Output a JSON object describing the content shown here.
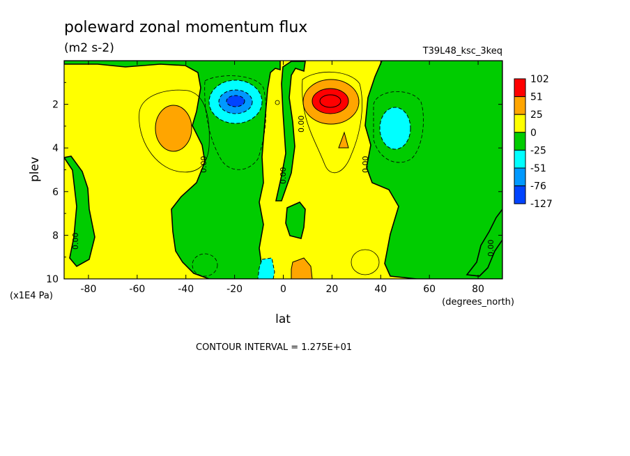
{
  "chart_data": {
    "type": "heatmap",
    "title": "poleward zonal momentum flux",
    "units": "(m2 s-2)",
    "run_label": "T39L48_ksc_3keq",
    "xlabel": "lat",
    "xunits": "(degrees_north)",
    "ylabel": "plev",
    "yunits": "(x1E4 Pa)",
    "xlim": [
      -90,
      90
    ],
    "ylim": [
      10,
      0
    ],
    "x_ticks": [
      -80,
      -60,
      -40,
      -20,
      0,
      20,
      40,
      60,
      80
    ],
    "y_ticks": [
      2,
      4,
      6,
      8,
      10
    ],
    "contour_interval_text": "CONTOUR INTERVAL = 1.275E+01",
    "colorbar": {
      "labels": [
        "102",
        "51",
        "25",
        "0",
        "-25",
        "-51",
        "-76",
        "-127"
      ],
      "colors": [
        "#ff0000",
        "#ffa500",
        "#ffff00",
        "#00cc00",
        "#00ffff",
        "#0099ff",
        "#0044ff"
      ]
    },
    "zero_contour_label": "0.00",
    "features": [
      {
        "name": "NH subtropical jet flux maximum",
        "lat": 20,
        "plev": 2.0,
        "value": 102
      },
      {
        "name": "SH subtropical jet flux minimum",
        "lat": -19,
        "plev": 2.0,
        "value": -76
      },
      {
        "name": "SH midlatitude positive",
        "lat": -44,
        "plev": 3.0,
        "value": 25
      },
      {
        "name": "NH midlatitude negative",
        "lat": 45,
        "plev": 3.0,
        "value": -25
      },
      {
        "name": "NH near-surface positive",
        "lat": 7,
        "plev": 9.6,
        "value": 25
      },
      {
        "name": "SH near-surface negative",
        "lat": -7,
        "plev": 9.6,
        "value": -25
      }
    ]
  }
}
